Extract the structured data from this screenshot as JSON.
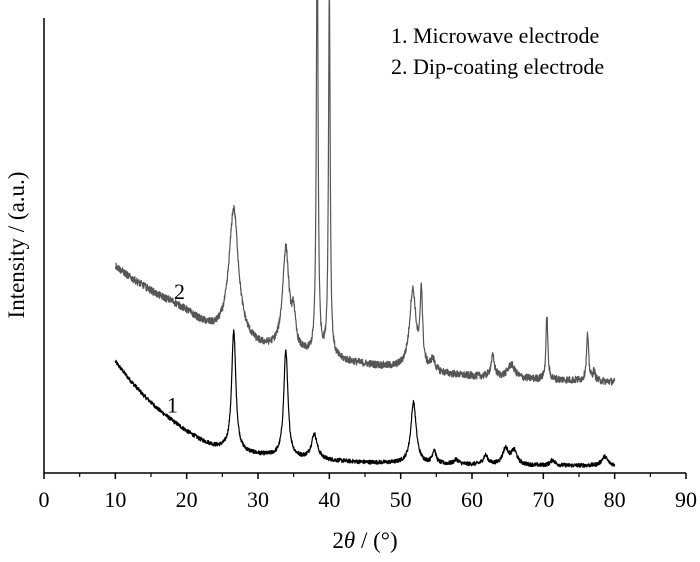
{
  "chart_data": {
    "type": "line",
    "xlabel_prefix": "2",
    "xlabel_symbol": "θ",
    "xlabel_unit": " / (°)",
    "ylabel": "Intensity / (a.u.)",
    "xlim": [
      0,
      90
    ],
    "xticks": [
      0,
      10,
      20,
      30,
      40,
      50,
      60,
      70,
      80,
      90
    ],
    "yticks_shown": false,
    "legend": {
      "position": "top-right",
      "entries": [
        "1. Microwave electrode",
        "2. Dip-coating electrode"
      ]
    },
    "series": [
      {
        "tag": "1",
        "color": "#000000",
        "x_range": [
          10,
          80
        ],
        "label_at_x": 18,
        "baseline": [
          [
            10,
            0.245
          ],
          [
            12,
            0.205
          ],
          [
            14,
            0.17
          ],
          [
            16,
            0.14
          ],
          [
            18,
            0.115
          ],
          [
            20,
            0.092
          ],
          [
            22,
            0.072
          ],
          [
            24,
            0.058
          ],
          [
            26,
            0.05
          ],
          [
            28,
            0.044
          ],
          [
            30,
            0.04
          ],
          [
            35,
            0.032
          ],
          [
            40,
            0.027
          ],
          [
            45,
            0.023
          ],
          [
            50,
            0.021
          ],
          [
            55,
            0.019
          ],
          [
            60,
            0.018
          ],
          [
            65,
            0.017
          ],
          [
            70,
            0.016
          ],
          [
            75,
            0.016
          ],
          [
            80,
            0.016
          ]
        ],
        "peaks": [
          [
            26.6,
            0.265,
            0.35
          ],
          [
            33.9,
            0.235,
            0.35
          ],
          [
            37.9,
            0.055,
            0.5
          ],
          [
            51.8,
            0.135,
            0.45
          ],
          [
            54.7,
            0.03,
            0.3
          ],
          [
            57.8,
            0.01,
            0.4
          ],
          [
            61.9,
            0.02,
            0.4
          ],
          [
            64.7,
            0.035,
            0.5
          ],
          [
            65.9,
            0.03,
            0.5
          ],
          [
            71.3,
            0.012,
            0.4
          ],
          [
            78.6,
            0.02,
            0.5
          ]
        ]
      },
      {
        "tag": "2",
        "color": "#555555",
        "x_range": [
          10,
          80
        ],
        "label_at_x": 19,
        "baseline": [
          [
            10,
            0.455
          ],
          [
            12,
            0.43
          ],
          [
            14,
            0.41
          ],
          [
            16,
            0.39
          ],
          [
            18,
            0.375
          ],
          [
            20,
            0.355
          ],
          [
            22,
            0.33
          ],
          [
            24,
            0.31
          ],
          [
            30,
            0.275
          ],
          [
            35,
            0.26
          ],
          [
            40,
            0.25
          ],
          [
            45,
            0.238
          ],
          [
            50,
            0.228
          ],
          [
            55,
            0.218
          ],
          [
            60,
            0.212
          ],
          [
            65,
            0.208
          ],
          [
            70,
            0.205
          ],
          [
            75,
            0.203
          ],
          [
            80,
            0.2
          ]
        ],
        "peaks": [
          [
            26.6,
            0.285,
            0.8
          ],
          [
            33.9,
            0.225,
            0.55
          ],
          [
            35.0,
            0.07,
            0.3
          ],
          [
            38.3,
            0.965,
            0.14
          ],
          [
            40.0,
            0.81,
            0.14
          ],
          [
            51.7,
            0.175,
            0.55
          ],
          [
            52.9,
            0.165,
            0.2
          ],
          [
            54.5,
            0.025,
            0.4
          ],
          [
            62.9,
            0.045,
            0.3
          ],
          [
            65.5,
            0.03,
            0.6
          ],
          [
            70.5,
            0.145,
            0.15
          ],
          [
            76.2,
            0.1,
            0.18
          ],
          [
            77.1,
            0.02,
            0.2
          ]
        ]
      }
    ]
  }
}
